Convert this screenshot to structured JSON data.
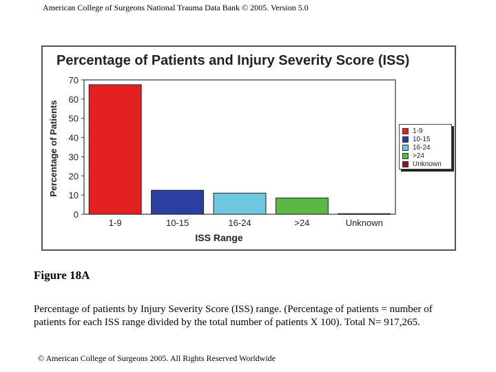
{
  "header": {
    "text": "American College of Surgeons National Trauma Data Bank © 2005. Version 5.0"
  },
  "chart_data": {
    "type": "bar",
    "title": "Percentage of Patients and Injury Severity Score (ISS)",
    "xlabel": "ISS Range",
    "ylabel": "Percentage of Patients",
    "categories": [
      "1-9",
      "10-15",
      "16-24",
      ">24",
      "Unknown"
    ],
    "series": [
      {
        "name": "",
        "values": [
          67.5,
          12.5,
          11,
          8.5,
          0.3
        ]
      }
    ],
    "colors": [
      "#e52020",
      "#2a3fa0",
      "#6ec9e0",
      "#5bb845",
      "#8a1a1a"
    ],
    "ylim": [
      0,
      70
    ],
    "yticks": [
      0,
      10,
      20,
      30,
      40,
      50,
      60,
      70
    ],
    "grid": false,
    "legend": {
      "placement": "right",
      "entries": [
        "1-9",
        "10-15",
        "16-24",
        ">24",
        "Unknown"
      ]
    }
  },
  "figure": {
    "label": "Figure 18A"
  },
  "caption": {
    "text": "Percentage of patients by Injury Severity Score (ISS) range.  (Percentage of patients = number of patients for each ISS range divided by the total number of patients X 100).  Total N= 917,265."
  },
  "footer": {
    "copyright": "© American College of Surgeons 2005. All Rights Reserved Worldwide"
  }
}
